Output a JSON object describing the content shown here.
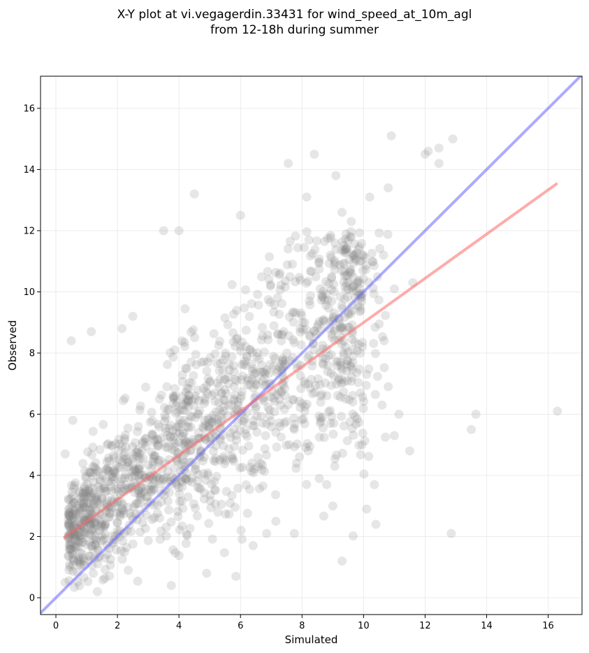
{
  "chart_data": {
    "type": "scatter",
    "title_line1": "X-Y plot at vi.vegagerdin.33431 for wind_speed_at_10m_agl",
    "title_line2": "from 12-18h during summer",
    "xlabel": "Simulated",
    "ylabel": "Observed",
    "xlim": [
      -0.5,
      17.1
    ],
    "ylim": [
      -0.55,
      17.05
    ],
    "xticks": [
      0,
      2,
      4,
      6,
      8,
      10,
      12,
      14,
      16
    ],
    "yticks": [
      0,
      2,
      4,
      6,
      8,
      10,
      12,
      14,
      16
    ],
    "grid": true,
    "point_color": "#808080",
    "identity_line": {
      "color": "#6666ff",
      "x": [
        -0.5,
        17.1
      ],
      "y": [
        -0.5,
        17.1
      ]
    },
    "fit_line": {
      "color": "#ff6666",
      "x": [
        0.25,
        16.3
      ],
      "y": [
        1.95,
        13.55
      ]
    },
    "outliers": [
      {
        "x": 0.5,
        "y": 8.4
      },
      {
        "x": 1.15,
        "y": 8.7
      },
      {
        "x": 2.15,
        "y": 8.8
      },
      {
        "x": 2.5,
        "y": 9.2
      },
      {
        "x": 3.5,
        "y": 12.0
      },
      {
        "x": 4.0,
        "y": 12.0
      },
      {
        "x": 4.5,
        "y": 13.2
      },
      {
        "x": 6.0,
        "y": 12.5
      },
      {
        "x": 7.55,
        "y": 14.2
      },
      {
        "x": 8.15,
        "y": 13.1
      },
      {
        "x": 8.4,
        "y": 14.5
      },
      {
        "x": 9.1,
        "y": 13.8
      },
      {
        "x": 10.2,
        "y": 13.1
      },
      {
        "x": 10.8,
        "y": 13.4
      },
      {
        "x": 10.9,
        "y": 15.1
      },
      {
        "x": 12.0,
        "y": 14.5
      },
      {
        "x": 12.1,
        "y": 14.6
      },
      {
        "x": 12.45,
        "y": 14.7
      },
      {
        "x": 12.45,
        "y": 14.2
      },
      {
        "x": 12.9,
        "y": 15.0
      },
      {
        "x": 9.3,
        "y": 12.6
      },
      {
        "x": 9.6,
        "y": 12.3
      },
      {
        "x": 11.6,
        "y": 10.3
      },
      {
        "x": 11.0,
        "y": 10.1
      },
      {
        "x": 11.15,
        "y": 6.0
      },
      {
        "x": 11.0,
        "y": 5.3
      },
      {
        "x": 11.5,
        "y": 4.8
      },
      {
        "x": 13.5,
        "y": 5.5
      },
      {
        "x": 13.65,
        "y": 6.0
      },
      {
        "x": 16.3,
        "y": 6.1
      },
      {
        "x": 12.85,
        "y": 2.1
      },
      {
        "x": 9.3,
        "y": 1.2
      },
      {
        "x": 10.4,
        "y": 2.4
      },
      {
        "x": 10.1,
        "y": 2.9
      },
      {
        "x": 10.35,
        "y": 3.7
      },
      {
        "x": 9.0,
        "y": 3.0
      },
      {
        "x": 8.8,
        "y": 3.7
      },
      {
        "x": 9.95,
        "y": 5.0
      },
      {
        "x": 10.8,
        "y": 6.9
      },
      {
        "x": 10.6,
        "y": 6.3
      },
      {
        "x": 10.65,
        "y": 11.2
      },
      {
        "x": 3.75,
        "y": 0.4
      },
      {
        "x": 5.85,
        "y": 0.7
      },
      {
        "x": 4.9,
        "y": 0.8
      },
      {
        "x": 1.35,
        "y": 0.2
      },
      {
        "x": 0.55,
        "y": 5.8
      },
      {
        "x": 0.3,
        "y": 4.7
      },
      {
        "x": 0.3,
        "y": 0.5
      },
      {
        "x": 7.75,
        "y": 2.1
      },
      {
        "x": 7.15,
        "y": 2.5
      },
      {
        "x": 6.85,
        "y": 2.1
      },
      {
        "x": 8.2,
        "y": 4.8
      },
      {
        "x": 9.65,
        "y": 6.4
      },
      {
        "x": 9.9,
        "y": 6.7
      },
      {
        "x": 10.1,
        "y": 7.3
      }
    ]
  }
}
